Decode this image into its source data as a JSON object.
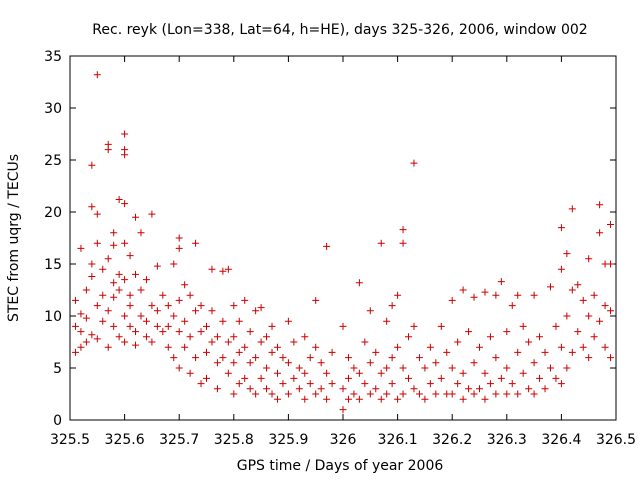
{
  "chart_data": {
    "type": "scatter",
    "title": "Rec. reyk (Lon=338, Lat=64, h=HE), days 325-326, 2006, window 002",
    "xlabel": "GPS time / Days of year 2006",
    "ylabel": "STEC from uqrg / TECUs",
    "xlim": [
      325.5,
      326.5
    ],
    "ylim": [
      0,
      35
    ],
    "xticks": [
      "325.5",
      "325.6",
      "325.7",
      "325.8",
      "325.9",
      "326",
      "326.1",
      "326.2",
      "326.3",
      "326.4",
      "326.5"
    ],
    "yticks": [
      "0",
      "5",
      "10",
      "15",
      "20",
      "25",
      "30",
      "35"
    ],
    "grid": false,
    "marker": "+",
    "color": "#cc0000",
    "points": [
      [
        325.51,
        9.0
      ],
      [
        325.51,
        11.5
      ],
      [
        325.51,
        6.5
      ],
      [
        325.52,
        8.5
      ],
      [
        325.52,
        16.5
      ],
      [
        325.52,
        7.0
      ],
      [
        325.52,
        10.2
      ],
      [
        325.53,
        12.5
      ],
      [
        325.53,
        9.8
      ],
      [
        325.53,
        7.5
      ],
      [
        325.54,
        15.0
      ],
      [
        325.54,
        20.5
      ],
      [
        325.54,
        24.5
      ],
      [
        325.54,
        13.8
      ],
      [
        325.54,
        8.2
      ],
      [
        325.55,
        33.2
      ],
      [
        325.55,
        17.0
      ],
      [
        325.55,
        19.8
      ],
      [
        325.55,
        11.0
      ],
      [
        325.55,
        7.8
      ],
      [
        325.56,
        14.5
      ],
      [
        325.56,
        9.5
      ],
      [
        325.56,
        12.0
      ],
      [
        325.57,
        26.5
      ],
      [
        325.57,
        26.0
      ],
      [
        325.57,
        15.5
      ],
      [
        325.57,
        10.5
      ],
      [
        325.57,
        7.0
      ],
      [
        325.58,
        13.2
      ],
      [
        325.58,
        18.0
      ],
      [
        325.58,
        16.8
      ],
      [
        325.58,
        9.0
      ],
      [
        325.58,
        11.8
      ],
      [
        325.59,
        21.2
      ],
      [
        325.59,
        14.0
      ],
      [
        325.59,
        8.0
      ],
      [
        325.59,
        12.5
      ],
      [
        325.6,
        27.5
      ],
      [
        325.6,
        26.0
      ],
      [
        325.6,
        25.5
      ],
      [
        325.6,
        20.8
      ],
      [
        325.6,
        17.0
      ],
      [
        325.6,
        13.5
      ],
      [
        325.6,
        10.0
      ],
      [
        325.6,
        7.5
      ],
      [
        325.61,
        15.8
      ],
      [
        325.61,
        12.0
      ],
      [
        325.61,
        9.0
      ],
      [
        325.61,
        11.0
      ],
      [
        325.62,
        19.5
      ],
      [
        325.62,
        14.0
      ],
      [
        325.62,
        8.5
      ],
      [
        325.62,
        7.2
      ],
      [
        325.63,
        18.0
      ],
      [
        325.63,
        12.5
      ],
      [
        325.63,
        10.0
      ],
      [
        325.64,
        13.5
      ],
      [
        325.64,
        8.0
      ],
      [
        325.64,
        9.5
      ],
      [
        325.65,
        19.8
      ],
      [
        325.65,
        11.0
      ],
      [
        325.65,
        7.5
      ],
      [
        325.66,
        14.8
      ],
      [
        325.66,
        10.5
      ],
      [
        325.66,
        9.0
      ],
      [
        325.67,
        8.5
      ],
      [
        325.67,
        12.0
      ],
      [
        325.68,
        11.0
      ],
      [
        325.68,
        7.0
      ],
      [
        325.68,
        9.0
      ],
      [
        325.69,
        15.0
      ],
      [
        325.69,
        10.0
      ],
      [
        325.69,
        6.0
      ],
      [
        325.7,
        17.5
      ],
      [
        325.7,
        16.5
      ],
      [
        325.7,
        11.5
      ],
      [
        325.7,
        8.5
      ],
      [
        325.7,
        5.0
      ],
      [
        325.71,
        13.0
      ],
      [
        325.71,
        9.5
      ],
      [
        325.71,
        7.0
      ],
      [
        325.72,
        12.0
      ],
      [
        325.72,
        8.0
      ],
      [
        325.72,
        4.5
      ],
      [
        325.73,
        17.0
      ],
      [
        325.73,
        10.5
      ],
      [
        325.73,
        6.0
      ],
      [
        325.74,
        11.0
      ],
      [
        325.74,
        8.5
      ],
      [
        325.74,
        3.5
      ],
      [
        325.75,
        9.0
      ],
      [
        325.75,
        6.5
      ],
      [
        325.75,
        4.0
      ],
      [
        325.76,
        14.5
      ],
      [
        325.76,
        10.5
      ],
      [
        325.76,
        7.5
      ],
      [
        325.77,
        8.0
      ],
      [
        325.77,
        5.5
      ],
      [
        325.77,
        3.0
      ],
      [
        325.78,
        14.3
      ],
      [
        325.78,
        9.5
      ],
      [
        325.78,
        6.0
      ],
      [
        325.79,
        14.5
      ],
      [
        325.79,
        7.5
      ],
      [
        325.79,
        4.5
      ],
      [
        325.8,
        11.0
      ],
      [
        325.8,
        8.0
      ],
      [
        325.8,
        5.5
      ],
      [
        325.8,
        2.5
      ],
      [
        325.81,
        9.5
      ],
      [
        325.81,
        6.5
      ],
      [
        325.81,
        3.5
      ],
      [
        325.82,
        11.5
      ],
      [
        325.82,
        7.0
      ],
      [
        325.82,
        4.0
      ],
      [
        325.83,
        8.5
      ],
      [
        325.83,
        5.5
      ],
      [
        325.83,
        3.0
      ],
      [
        325.84,
        10.5
      ],
      [
        325.84,
        6.0
      ],
      [
        325.84,
        2.5
      ],
      [
        325.85,
        10.8
      ],
      [
        325.85,
        7.5
      ],
      [
        325.85,
        4.0
      ],
      [
        325.86,
        8.0
      ],
      [
        325.86,
        5.0
      ],
      [
        325.86,
        3.0
      ],
      [
        325.87,
        9.0
      ],
      [
        325.87,
        6.5
      ],
      [
        325.87,
        2.5
      ],
      [
        325.88,
        7.0
      ],
      [
        325.88,
        4.5
      ],
      [
        325.88,
        2.0
      ],
      [
        325.89,
        6.0
      ],
      [
        325.89,
        3.5
      ],
      [
        325.9,
        9.5
      ],
      [
        325.9,
        5.5
      ],
      [
        325.9,
        2.5
      ],
      [
        325.91,
        7.5
      ],
      [
        325.91,
        4.0
      ],
      [
        325.92,
        5.0
      ],
      [
        325.92,
        3.0
      ],
      [
        325.93,
        8.0
      ],
      [
        325.93,
        4.5
      ],
      [
        325.93,
        2.0
      ],
      [
        325.94,
        6.0
      ],
      [
        325.94,
        3.5
      ],
      [
        325.95,
        11.5
      ],
      [
        325.95,
        7.0
      ],
      [
        325.95,
        2.5
      ],
      [
        325.96,
        5.5
      ],
      [
        325.96,
        3.0
      ],
      [
        325.97,
        16.7
      ],
      [
        325.97,
        4.5
      ],
      [
        325.97,
        2.0
      ],
      [
        325.98,
        6.5
      ],
      [
        325.98,
        3.5
      ],
      [
        326.0,
        9.0
      ],
      [
        326.0,
        3.0
      ],
      [
        326.0,
        1.0
      ],
      [
        326.01,
        6.0
      ],
      [
        326.01,
        4.0
      ],
      [
        326.01,
        2.0
      ],
      [
        326.02,
        5.0
      ],
      [
        326.02,
        2.5
      ],
      [
        326.03,
        13.2
      ],
      [
        326.03,
        4.5
      ],
      [
        326.03,
        2.0
      ],
      [
        326.04,
        7.5
      ],
      [
        326.04,
        3.5
      ],
      [
        326.05,
        10.5
      ],
      [
        326.05,
        5.5
      ],
      [
        326.05,
        2.5
      ],
      [
        326.06,
        6.5
      ],
      [
        326.06,
        3.0
      ],
      [
        326.07,
        17.0
      ],
      [
        326.07,
        4.5
      ],
      [
        326.07,
        2.0
      ],
      [
        326.08,
        9.5
      ],
      [
        326.08,
        5.0
      ],
      [
        326.08,
        2.5
      ],
      [
        326.09,
        11.0
      ],
      [
        326.09,
        6.0
      ],
      [
        326.09,
        3.5
      ],
      [
        326.1,
        12.0
      ],
      [
        326.1,
        7.0
      ],
      [
        326.1,
        2.0
      ],
      [
        326.11,
        18.3
      ],
      [
        326.11,
        17.0
      ],
      [
        326.11,
        5.0
      ],
      [
        326.11,
        2.5
      ],
      [
        326.12,
        8.0
      ],
      [
        326.12,
        4.0
      ],
      [
        326.13,
        24.7
      ],
      [
        326.13,
        9.0
      ],
      [
        326.13,
        3.0
      ],
      [
        326.14,
        6.0
      ],
      [
        326.14,
        2.5
      ],
      [
        326.15,
        5.0
      ],
      [
        326.15,
        2.0
      ],
      [
        326.16,
        7.0
      ],
      [
        326.16,
        3.5
      ],
      [
        326.17,
        5.5
      ],
      [
        326.17,
        2.5
      ],
      [
        326.18,
        9.0
      ],
      [
        326.18,
        4.0
      ],
      [
        326.19,
        6.5
      ],
      [
        326.19,
        2.5
      ],
      [
        326.2,
        11.5
      ],
      [
        326.2,
        5.0
      ],
      [
        326.2,
        2.5
      ],
      [
        326.21,
        7.5
      ],
      [
        326.21,
        3.5
      ],
      [
        326.22,
        12.5
      ],
      [
        326.22,
        4.5
      ],
      [
        326.22,
        2.0
      ],
      [
        326.23,
        8.5
      ],
      [
        326.23,
        3.0
      ],
      [
        326.24,
        11.8
      ],
      [
        326.24,
        5.5
      ],
      [
        326.24,
        2.5
      ],
      [
        326.25,
        7.0
      ],
      [
        326.25,
        3.0
      ],
      [
        326.26,
        12.3
      ],
      [
        326.26,
        4.5
      ],
      [
        326.26,
        2.0
      ],
      [
        326.27,
        8.0
      ],
      [
        326.27,
        3.5
      ],
      [
        326.28,
        12.0
      ],
      [
        326.28,
        6.0
      ],
      [
        326.28,
        2.5
      ],
      [
        326.29,
        13.3
      ],
      [
        326.29,
        4.0
      ],
      [
        326.3,
        8.5
      ],
      [
        326.3,
        5.0
      ],
      [
        326.3,
        2.5
      ],
      [
        326.31,
        11.0
      ],
      [
        326.31,
        3.5
      ],
      [
        326.32,
        12.0
      ],
      [
        326.32,
        6.5
      ],
      [
        326.32,
        2.5
      ],
      [
        326.33,
        9.0
      ],
      [
        326.33,
        4.5
      ],
      [
        326.34,
        7.5
      ],
      [
        326.34,
        3.0
      ],
      [
        326.35,
        12.0
      ],
      [
        326.35,
        5.5
      ],
      [
        326.35,
        2.5
      ],
      [
        326.36,
        8.0
      ],
      [
        326.36,
        4.0
      ],
      [
        326.37,
        6.5
      ],
      [
        326.37,
        3.0
      ],
      [
        326.38,
        12.8
      ],
      [
        326.38,
        5.0
      ],
      [
        326.39,
        9.0
      ],
      [
        326.39,
        4.0
      ],
      [
        326.4,
        14.5
      ],
      [
        326.4,
        18.5
      ],
      [
        326.4,
        7.0
      ],
      [
        326.4,
        3.5
      ],
      [
        326.41,
        16.0
      ],
      [
        326.41,
        10.0
      ],
      [
        326.41,
        5.0
      ],
      [
        326.42,
        20.3
      ],
      [
        326.42,
        12.5
      ],
      [
        326.42,
        6.5
      ],
      [
        326.43,
        13.0
      ],
      [
        326.43,
        8.5
      ],
      [
        326.44,
        11.5
      ],
      [
        326.44,
        7.0
      ],
      [
        326.45,
        15.5
      ],
      [
        326.45,
        10.0
      ],
      [
        326.45,
        6.0
      ],
      [
        326.46,
        12.0
      ],
      [
        326.46,
        8.0
      ],
      [
        326.47,
        20.7
      ],
      [
        326.47,
        18.0
      ],
      [
        326.47,
        9.5
      ],
      [
        326.48,
        15.0
      ],
      [
        326.48,
        11.0
      ],
      [
        326.48,
        7.0
      ],
      [
        326.49,
        18.8
      ],
      [
        326.49,
        15.0
      ],
      [
        326.49,
        10.5
      ],
      [
        326.49,
        6.0
      ]
    ]
  }
}
